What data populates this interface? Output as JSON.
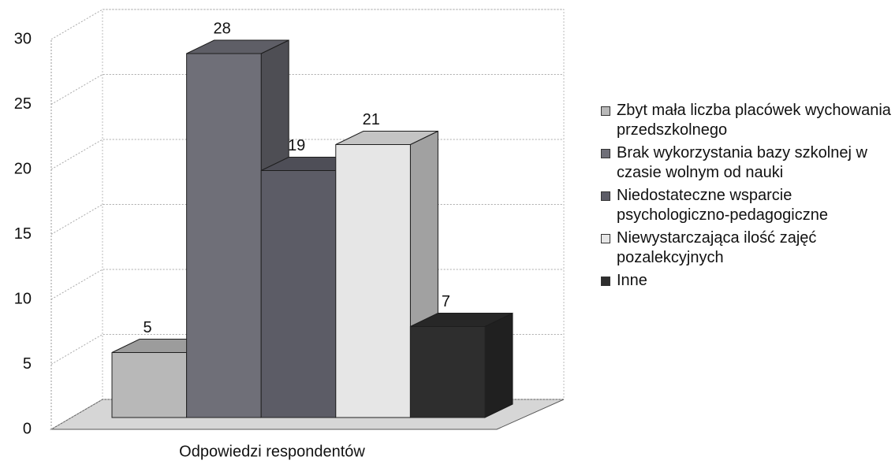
{
  "chart_data": {
    "type": "bar3d",
    "x_label": "Odpowiedzi respondentów",
    "categories": [
      "Odpowiedzi respondentów"
    ],
    "series": [
      {
        "name": "Zbyt mała liczba placówek wychowania przedszkolnego",
        "color": "#b8b8b8",
        "values": [
          5
        ]
      },
      {
        "name": "Brak wykorzystania bazy szkolnej w czasie wolnym od nauki",
        "color": "#6f6f78",
        "values": [
          28
        ]
      },
      {
        "name": "Niedostateczne wsparcie psychologiczno-pedagogiczne",
        "color": "#5c5c66",
        "values": [
          19
        ]
      },
      {
        "name": "Niewystarczająca ilość zajęć pozalekcyjnych",
        "color": "#e6e6e6",
        "values": [
          21
        ]
      },
      {
        "name": "Inne",
        "color": "#2e2e2e",
        "values": [
          7
        ]
      }
    ],
    "ylim": [
      0,
      30
    ],
    "yticks": [
      0,
      5,
      10,
      15,
      20,
      25,
      30
    ],
    "grid": true,
    "legend": "right"
  }
}
